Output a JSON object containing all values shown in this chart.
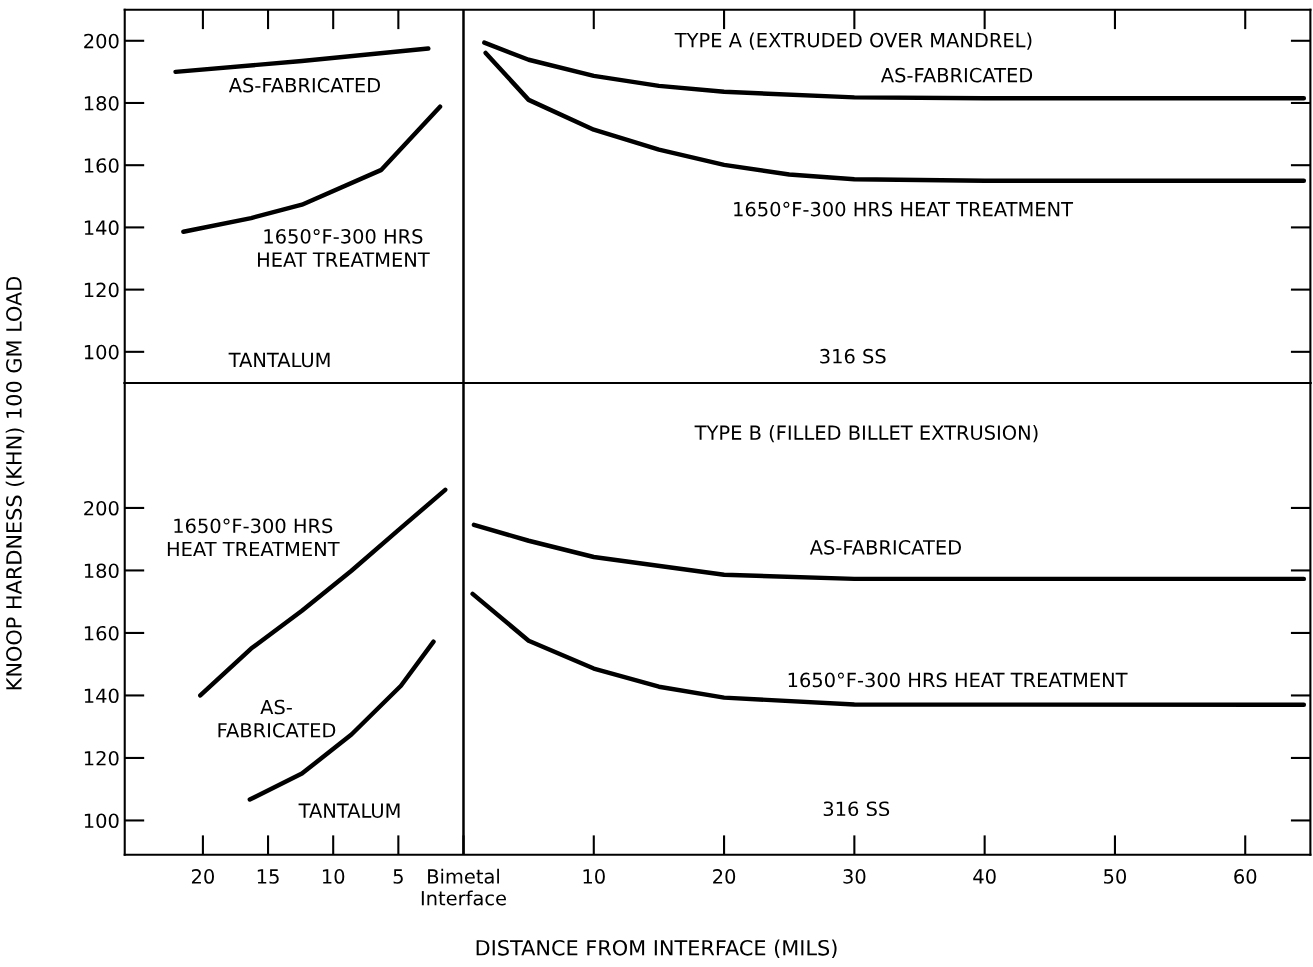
{
  "chart_data": [
    {
      "type": "line",
      "ylabel": "KNOOP HARDNESS (KHN) 100 GM LOAD",
      "xlim": [
        -26,
        65
      ],
      "ylim": [
        90,
        210
      ],
      "xticks": [
        {
          "value": -20,
          "label": null
        },
        {
          "value": -15,
          "label": null
        },
        {
          "value": -10,
          "label": null
        },
        {
          "value": -5,
          "label": null
        },
        {
          "value": 10,
          "label": null
        },
        {
          "value": 20,
          "label": null
        },
        {
          "value": 30,
          "label": null
        },
        {
          "value": 40,
          "label": null
        },
        {
          "value": 50,
          "label": null
        },
        {
          "value": 60,
          "label": null
        }
      ],
      "yticks": [
        100,
        120,
        140,
        160,
        180,
        200
      ],
      "tick_labels": "y",
      "grid": false,
      "legend": false,
      "marker": "none",
      "line_style": "solid",
      "ref_lines": [
        {
          "axis": "x",
          "value": 0,
          "label": null,
          "color": "#000000"
        }
      ],
      "series": [
        {
          "name": "AS-FABRICATED",
          "color": "#000000",
          "x": [
            -22.1,
            -12.4,
            -2.7
          ],
          "values": [
            190,
            193.5,
            197.5
          ]
        },
        {
          "name": "1650°F-300 HRS\nHEAT TREATMENT",
          "color": "#000000",
          "x": [
            -21.5,
            -16.3,
            -12.4,
            -6.3,
            -1.8
          ],
          "values": [
            138.6,
            143,
            147.3,
            158.5,
            178.8
          ]
        },
        {
          "name": "AS-FABRICATED",
          "color": "#000000",
          "x": [
            1.6,
            5,
            10,
            15,
            20,
            30,
            40,
            64.5
          ],
          "values": [
            199.4,
            193.9,
            188.7,
            185.5,
            183.6,
            181.8,
            181.5,
            181.5
          ]
        },
        {
          "name": "1650°F-300 HRS HEAT TREATMENT",
          "color": "#000000",
          "x": [
            1.7,
            5,
            10,
            15,
            20,
            25,
            30,
            40,
            64.5
          ],
          "values": [
            196.1,
            181,
            171.4,
            165,
            160.1,
            157,
            155.5,
            155,
            155
          ]
        }
      ],
      "annotations": [
        "TYPE A (EXTRUDED OVER MANDREL)",
        "TANTALUM",
        "316 SS"
      ]
    },
    {
      "type": "line",
      "xlabel": "DISTANCE FROM INTERFACE (MILS)",
      "xlim": [
        -26,
        65
      ],
      "ylim": [
        89,
        240
      ],
      "xticks": [
        {
          "value": -20,
          "label": "20"
        },
        {
          "value": -15,
          "label": "15"
        },
        {
          "value": -10,
          "label": "10"
        },
        {
          "value": -5,
          "label": "5"
        },
        {
          "value": 0,
          "label": "Bimetal\nInterface"
        },
        10,
        20,
        30,
        40,
        50,
        60
      ],
      "yticks": [
        100,
        120,
        140,
        160,
        180,
        200
      ],
      "grid": false,
      "legend": false,
      "marker": "none",
      "line_style": "solid",
      "ref_lines": [
        {
          "axis": "x",
          "value": 0,
          "label": null,
          "color": "#000000"
        }
      ],
      "series": [
        {
          "name": "1650°F-300 HRS\nHEAT TREATMENT",
          "color": "#000000",
          "x": [
            -20.2,
            -16.3,
            -12.4,
            -8.6,
            -4.8,
            -1.4
          ],
          "values": [
            140,
            155,
            167.1,
            179.9,
            193.6,
            205.8
          ]
        },
        {
          "name": "AS-\nFABRICATED",
          "color": "#000000",
          "x": [
            -16.4,
            -12.4,
            -8.6,
            -4.8,
            -2.3
          ],
          "values": [
            106.7,
            115,
            127.5,
            143.1,
            157.2
          ]
        },
        {
          "name": "AS-FABRICATED",
          "color": "#000000",
          "x": [
            0.8,
            5,
            10,
            20,
            30,
            64.5
          ],
          "values": [
            194.6,
            189.5,
            184.3,
            178.6,
            177.3,
            177.3
          ]
        },
        {
          "name": "1650°F-300 HRS HEAT TREATMENT",
          "color": "#000000",
          "x": [
            0.7,
            5,
            10,
            15,
            20,
            30,
            64.5
          ],
          "values": [
            172.5,
            157.5,
            148.6,
            142.8,
            139.3,
            137.1,
            137
          ]
        }
      ],
      "annotations": [
        "TYPE B (FILLED BILLET EXTRUSION)",
        "TANTALUM",
        "316 SS"
      ]
    }
  ]
}
